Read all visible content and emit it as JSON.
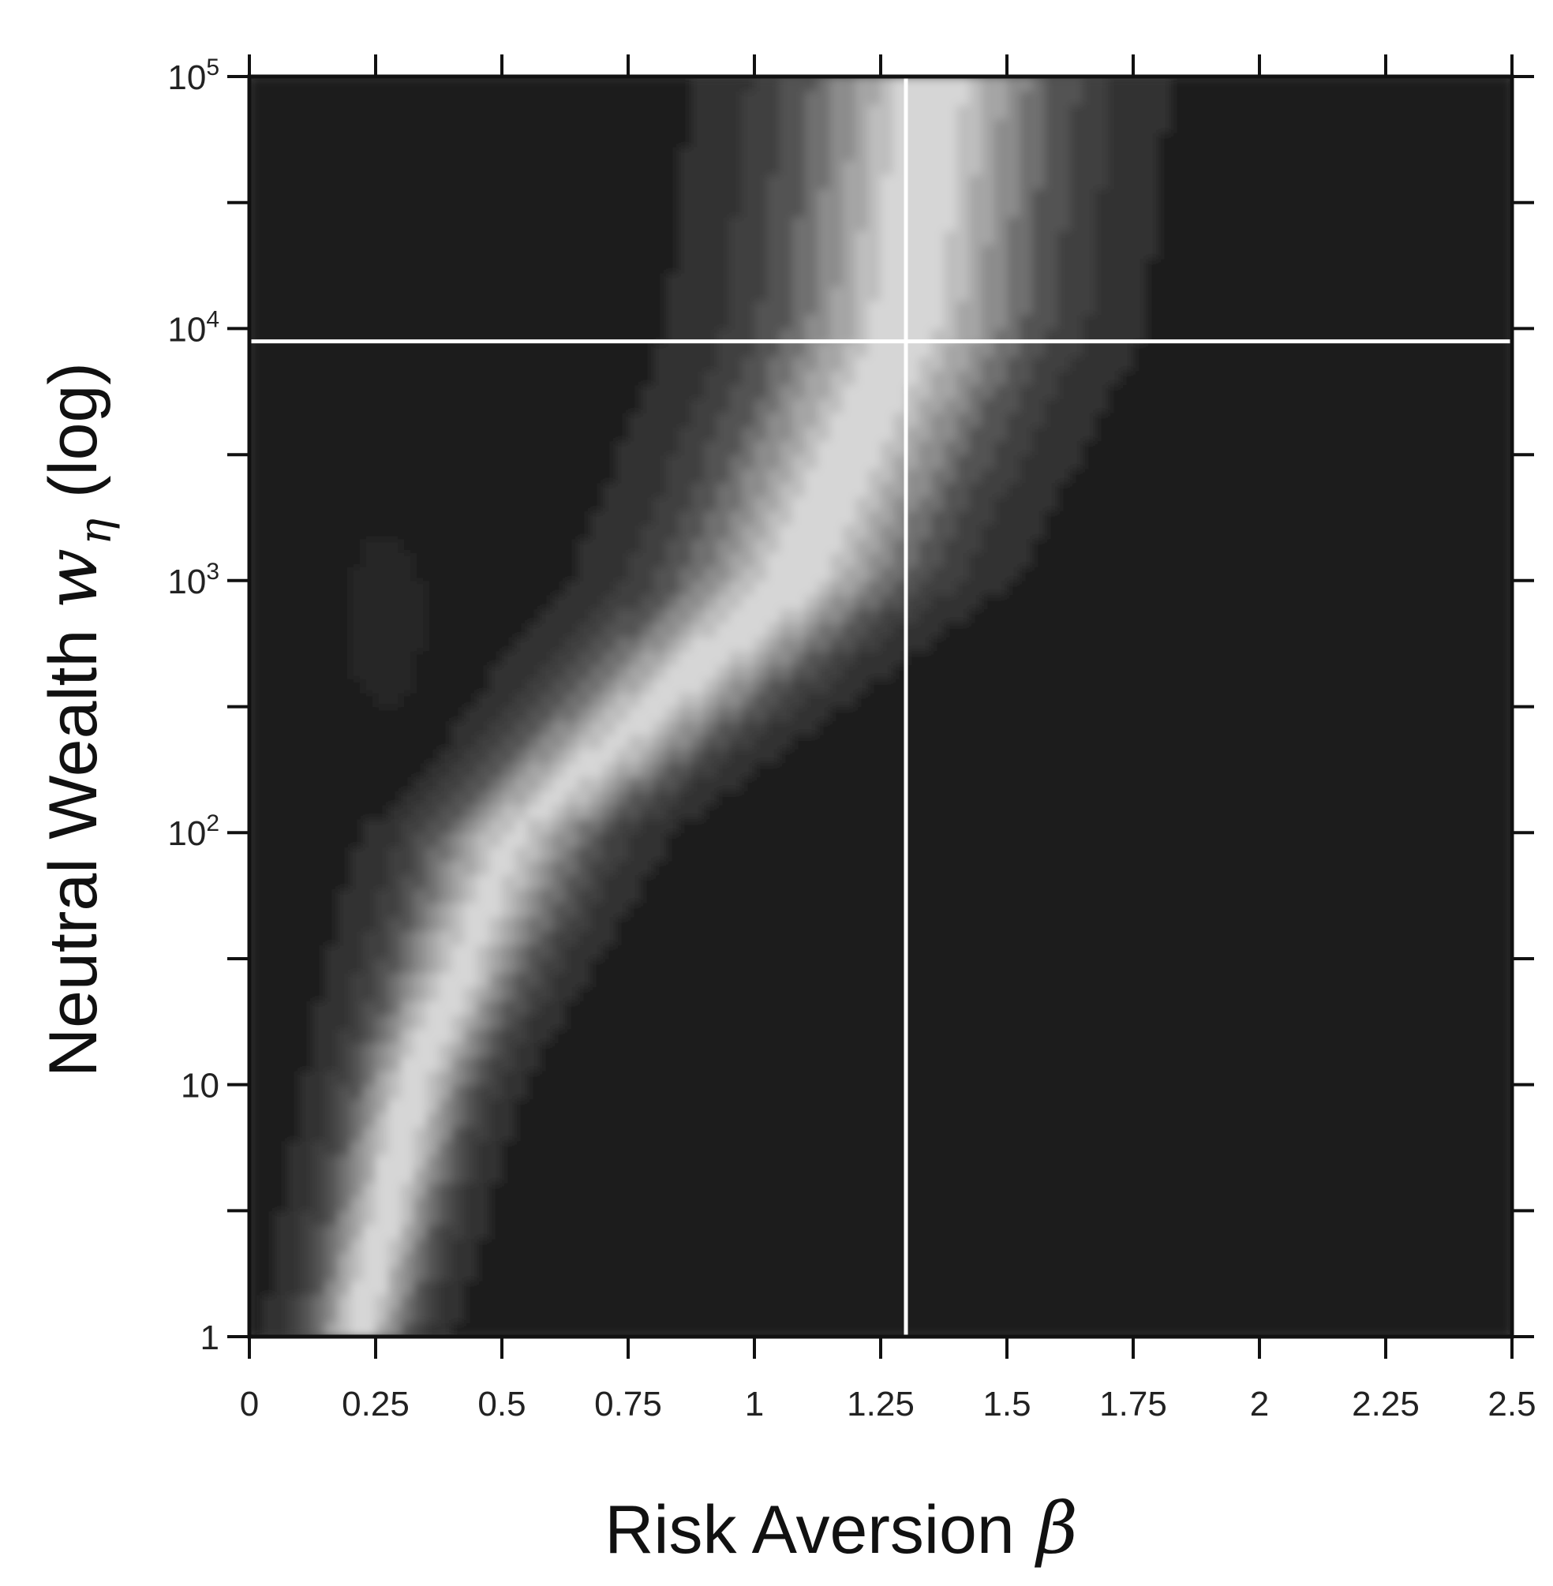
{
  "chart_data": {
    "type": "heatmap",
    "colormap": "grayscale",
    "xlabel": "Risk Aversion",
    "xlabel_symbol": "β",
    "ylabel": "Neutral Wealth",
    "ylabel_symbol": "w",
    "ylabel_subscript": "η",
    "ylabel_suffix": "(log)",
    "xlim": [
      0,
      2.5
    ],
    "ylim": [
      1,
      100000
    ],
    "y_scale": "log",
    "x_ticks": [
      0,
      0.25,
      0.5,
      0.75,
      1,
      1.25,
      1.5,
      1.75,
      2,
      2.25,
      2.5
    ],
    "x_tick_labels": [
      "0",
      "0.25",
      "0.5",
      "0.75",
      "1",
      "1.25",
      "1.5",
      "1.75",
      "2",
      "2.25",
      "2.5"
    ],
    "y_major_ticks": [
      1,
      10,
      100,
      1000,
      10000,
      100000
    ],
    "y_tick_labels": [
      {
        "value": 1,
        "base": "1",
        "exp": ""
      },
      {
        "value": 10,
        "base": "10",
        "exp": ""
      },
      {
        "value": 100,
        "base": "10",
        "exp": "2"
      },
      {
        "value": 1000,
        "base": "10",
        "exp": "3"
      },
      {
        "value": 10000,
        "base": "10",
        "exp": "4"
      },
      {
        "value": 100000,
        "base": "10",
        "exp": "5"
      }
    ],
    "y_minor_ticks": [
      3.16,
      31.6,
      316,
      3160,
      31600
    ],
    "crosshair": {
      "x": 1.3,
      "y": 8900
    },
    "bands": [
      {
        "y": 1,
        "x0": 0.13,
        "x1": 0.3,
        "intensity": 1.0,
        "width": 0.12
      },
      {
        "y": 10,
        "x0": 0.25,
        "x1": 0.4,
        "intensity": 1.0,
        "width": 0.14
      },
      {
        "y": 100,
        "x0": 0.45,
        "x1": 0.6,
        "intensity": 0.95,
        "width": 0.2
      },
      {
        "y": 1000,
        "x0": 0.95,
        "x1": 1.2,
        "intensity": 1.0,
        "width": 0.28
      },
      {
        "y": 10000,
        "x0": 1.25,
        "x1": 1.35,
        "intensity": 1.0,
        "width": 0.3
      },
      {
        "y": 100000,
        "x0": 1.3,
        "x1": 1.4,
        "intensity": 1.0,
        "width": 0.3
      }
    ]
  }
}
